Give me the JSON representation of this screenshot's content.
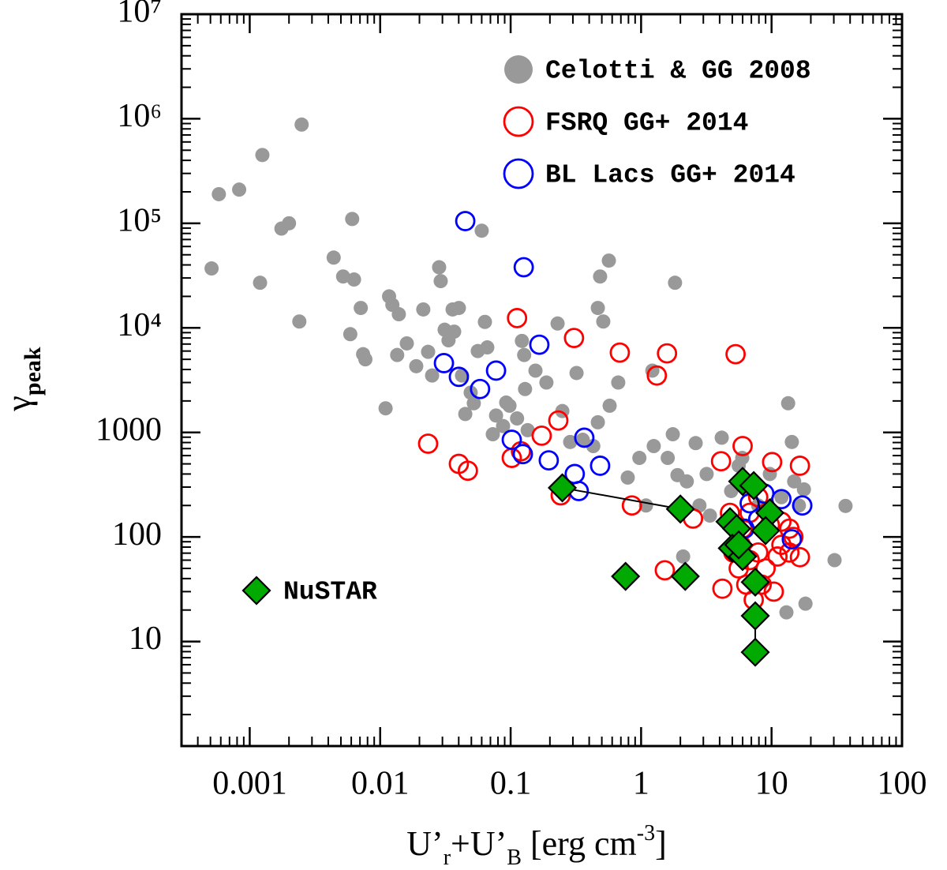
{
  "chart_data": {
    "type": "scatter",
    "xlabel": [
      "U’",
      "r",
      "+U’",
      "B",
      " [erg cm",
      "-3",
      "]"
    ],
    "ylabel": [
      "γ",
      "peak"
    ],
    "xlog": true,
    "ylog": true,
    "xlim": [
      0.0003,
      100
    ],
    "ylim": [
      1,
      10000000
    ],
    "xticks": [
      0.001,
      0.01,
      0.1,
      1,
      10,
      100
    ],
    "yticks": [
      10,
      100,
      1000,
      {
        "value": 10000,
        "label": "10⁴"
      },
      {
        "value": 100000,
        "label": "10⁵"
      },
      {
        "value": 1000000,
        "label": "10⁶"
      },
      {
        "value": 10000000,
        "label": "10⁷"
      }
    ],
    "legend": "upper right",
    "series": [
      {
        "name": "Celotti & GG 2008",
        "color": "#999999",
        "marker": "filled circle",
        "x": [
          0.00051,
          0.00058,
          0.00083,
          0.00125,
          0.00175,
          0.002,
          0.0012,
          0.0025,
          0.0024,
          0.0044,
          0.0052,
          0.0063,
          0.0059,
          0.0061,
          0.0071,
          0.0074,
          0.0077,
          0.011,
          0.0117,
          0.0124,
          0.0139,
          0.0135,
          0.016,
          0.0189,
          0.0214,
          0.0233,
          0.025,
          0.0283,
          0.0291,
          0.0312,
          0.0334,
          0.0359,
          0.0369,
          0.0401,
          0.06,
          0.0424,
          0.0449,
          0.0494,
          0.0522,
          0.056,
          0.0635,
          0.0662,
          0.073,
          0.0773,
          0.0875,
          0.098,
          0.112,
          0.122,
          0.127,
          0.129,
          0.135,
          0.155,
          0.188,
          0.229,
          0.249,
          0.286,
          0.32,
          0.357,
          0.43,
          0.466,
          0.574,
          0.668,
          0.466,
          0.485,
          0.513,
          0.566,
          0.79,
          0.97,
          1.09,
          1.22,
          1.25,
          1.6,
          1.75,
          1.9,
          1.82,
          2.24,
          2.62,
          2.8,
          3.18,
          3.37,
          4.15,
          4.9,
          5.6,
          6.5,
          7.9,
          9.7,
          13.4,
          14.3,
          16.2,
          17.7,
          13,
          18.2,
          30.4,
          36.9,
          2.1,
          0.0925,
          14.9,
          11.9,
          5.96
        ],
        "y": [
          37000,
          190000,
          210000,
          450000,
          89000,
          100000,
          27000,
          880000,
          11500,
          47000,
          31000,
          29000,
          8700,
          110000,
          15500,
          5600,
          5000,
          1700,
          20000,
          16600,
          13500,
          5500,
          7100,
          4300,
          15000,
          5900,
          3500,
          38000,
          28000,
          9600,
          7600,
          15000,
          9200,
          15500,
          85000,
          3500,
          1500,
          2400,
          1900,
          6000,
          11400,
          6500,
          960,
          1450,
          1150,
          1800,
          1360,
          7500,
          5500,
          2600,
          1050,
          3900,
          3000,
          11000,
          1600,
          810,
          3700,
          850,
          740,
          1250,
          1800,
          3000,
          15500,
          31000,
          11500,
          44000,
          370,
          570,
          200,
          3900,
          740,
          570,
          960,
          390,
          27000,
          340,
          790,
          200,
          400,
          160,
          890,
          275,
          480,
          285,
          200,
          400,
          1900,
          810,
          200,
          285,
          19,
          23,
          60,
          198,
          65,
          1930,
          340,
          240,
          570
        ]
      },
      {
        "name": "FSRQ GG+ 2014",
        "color": "#ff0000",
        "marker": "open circle",
        "x": [
          0.0233,
          0.0401,
          0.047,
          0.112,
          0.306,
          0.687,
          1.58,
          1.32,
          5.3,
          0.232,
          0.173,
          0.102,
          0.12,
          0.85,
          2.5,
          0.242,
          1.52,
          4.1,
          6,
          10.1,
          16.5,
          16.5,
          4.2,
          5.1,
          6,
          6.8,
          7.9,
          9,
          10.4,
          11.9,
          13.7,
          5.6,
          6.4,
          7.3,
          7.9,
          9.7,
          11.1,
          14.7,
          5.8,
          6.8,
          8.4,
          13.7,
          11.9,
          4.8
        ],
        "y": [
          780,
          500,
          430,
          12400,
          8000,
          5800,
          5700,
          3500,
          5600,
          1300,
          930,
          570,
          660,
          200,
          150,
          250,
          48,
          530,
          740,
          520,
          480,
          64,
          32,
          71,
          120,
          170,
          240,
          50,
          30,
          84,
          120,
          50,
          35,
          25,
          71,
          130,
          65,
          100,
          84,
          60,
          35,
          71,
          140,
          170
        ]
      },
      {
        "name": "BL Lacs GG+ 2014",
        "color": "#0000ff",
        "marker": "open circle",
        "x": [
          0.0449,
          0.126,
          0.166,
          0.0308,
          0.0401,
          0.0583,
          0.0773,
          0.102,
          0.124,
          0.196,
          0.367,
          0.485,
          0.31,
          0.333,
          6.8,
          8.8,
          11.9,
          14.3,
          17.2,
          6.2,
          7.9
        ],
        "y": [
          105000,
          38000,
          6900,
          4600,
          3400,
          2600,
          3900,
          850,
          620,
          540,
          890,
          480,
          400,
          275,
          210,
          260,
          230,
          95,
          200,
          120,
          148
        ]
      },
      {
        "name": "NuSTAR",
        "color": "#00aa00",
        "marker": "diamond",
        "legend_loc": "lower left",
        "x": [
          0.249,
          2,
          0.76,
          2.18,
          6,
          7.3,
          4.8,
          5.4,
          9.7,
          9,
          5,
          6,
          7.5,
          7.5,
          7.5,
          5.6
        ],
        "y": [
          295,
          185,
          42,
          42,
          340,
          310,
          140,
          120,
          170,
          115,
          78,
          65,
          37,
          17.6,
          7.9,
          84
        ],
        "connections": [
          [
            0,
            1
          ],
          [
            13,
            14
          ],
          [
            5,
            9
          ]
        ]
      }
    ]
  }
}
